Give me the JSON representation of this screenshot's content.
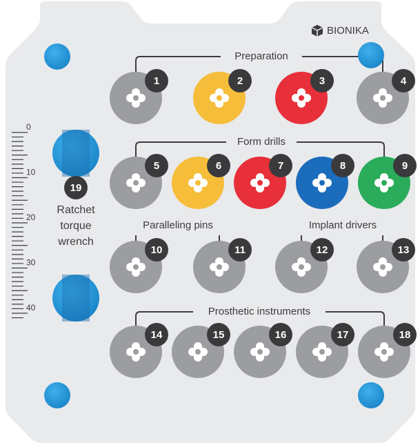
{
  "brand": "BIONIKA",
  "groups": {
    "preparation": "Preparation",
    "form_drills": "Form drills",
    "paralleling_pins": "Paralleling pins",
    "implant_drivers": "Implant drivers",
    "prosthetic": "Prosthetic instruments"
  },
  "slots": [
    {
      "number": "1",
      "color": "#9c9da0"
    },
    {
      "number": "2",
      "color": "#f5bd3a"
    },
    {
      "number": "3",
      "color": "#e7303a"
    },
    {
      "number": "4",
      "color": "#9c9da0"
    },
    {
      "number": "5",
      "color": "#9c9da0"
    },
    {
      "number": "6",
      "color": "#f5bd3a"
    },
    {
      "number": "7",
      "color": "#e7303a"
    },
    {
      "number": "8",
      "color": "#1b6cbc"
    },
    {
      "number": "9",
      "color": "#2aac5b"
    },
    {
      "number": "10",
      "color": "#9c9da0"
    },
    {
      "number": "11",
      "color": "#9c9da0"
    },
    {
      "number": "12",
      "color": "#9c9da0"
    },
    {
      "number": "13",
      "color": "#9c9da0"
    },
    {
      "number": "14",
      "color": "#9c9da0"
    },
    {
      "number": "15",
      "color": "#9c9da0"
    },
    {
      "number": "16",
      "color": "#9c9da0"
    },
    {
      "number": "17",
      "color": "#9c9da0"
    },
    {
      "number": "18",
      "color": "#9c9da0"
    }
  ],
  "ratchet": {
    "number": "19",
    "label": [
      "Ratchet",
      "torque",
      "wrench"
    ]
  },
  "ruler": [
    0,
    10,
    20,
    30,
    40
  ]
}
